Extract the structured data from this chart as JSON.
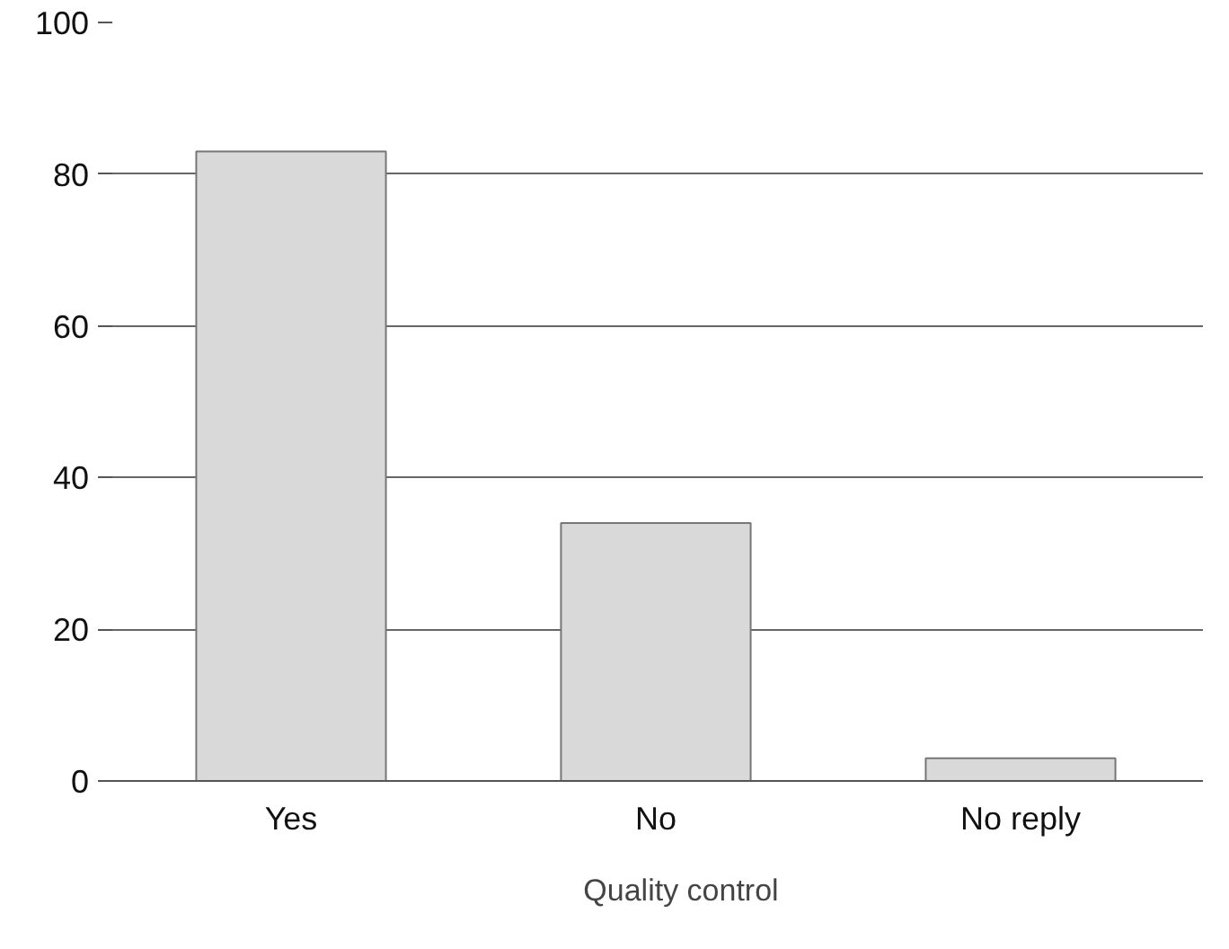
{
  "chart_data": {
    "type": "bar",
    "categories": [
      "Yes",
      "No",
      "No reply"
    ],
    "series": [
      {
        "name": "Quality control",
        "color": "#d9d9d9",
        "values": [
          83,
          34,
          3
        ]
      }
    ],
    "ylim": [
      0,
      100
    ],
    "yticks": [
      0,
      20,
      40,
      60,
      80,
      100
    ],
    "grid": "y",
    "legend": "bottom"
  }
}
